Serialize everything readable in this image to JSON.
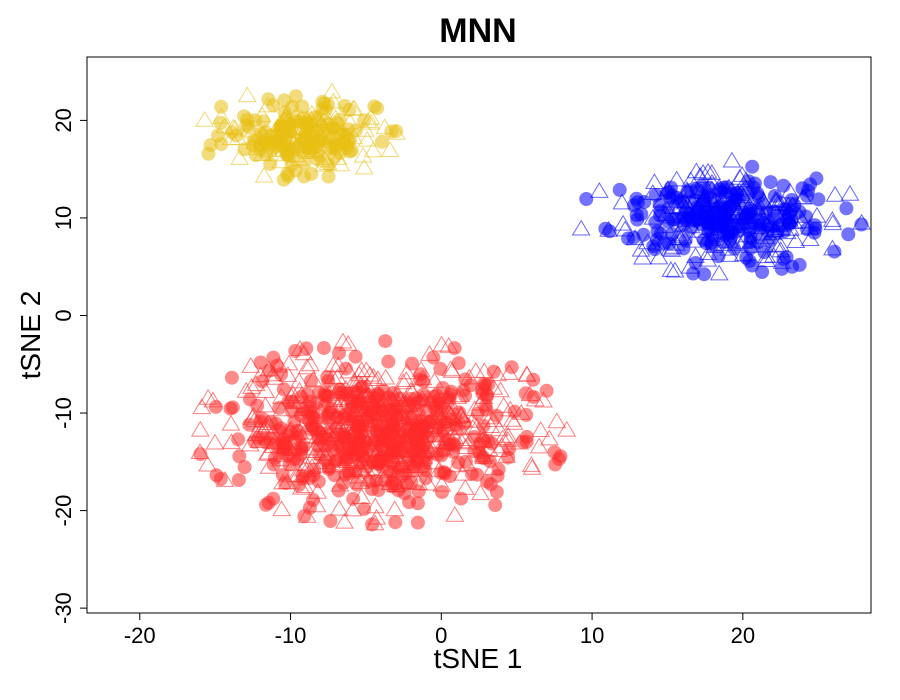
{
  "chart_data": {
    "type": "scatter",
    "title": "MNN",
    "xlabel": "tSNE 1",
    "ylabel": "tSNE 2",
    "xlim": [
      -23.5,
      28.5
    ],
    "ylim": [
      -30.5,
      26.5
    ],
    "xticks": [
      -20,
      -10,
      0,
      10,
      20
    ],
    "yticks": [
      -30,
      -20,
      -10,
      0,
      10,
      20
    ],
    "grid": false,
    "legend": "none",
    "marker_styles": [
      "filled-circle",
      "open-triangle"
    ],
    "clusters": [
      {
        "color": "#E8C013",
        "center": [
          -9.5,
          18.5
        ],
        "spread": [
          4.5,
          3.2
        ],
        "approx_points": 260
      },
      {
        "color": "#0000FF",
        "center": [
          18.5,
          10.0
        ],
        "spread": [
          6.5,
          4.0
        ],
        "approx_points": 420
      },
      {
        "color": "#FF2A2A",
        "center": [
          -4.0,
          -12.0
        ],
        "spread": [
          8.5,
          6.5
        ],
        "approx_points": 900
      }
    ]
  }
}
